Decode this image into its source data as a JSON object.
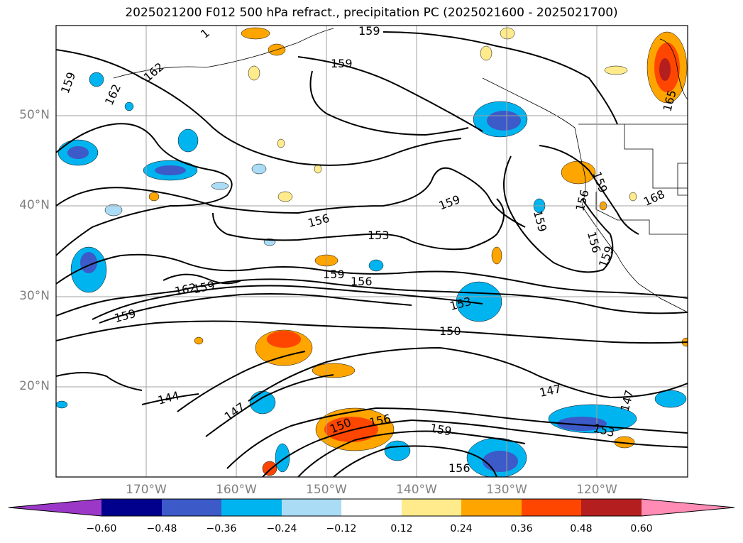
{
  "title": "2025021200 F012 500 hPa refract., precipitation PC (2025021600 - 2025021700)",
  "lat_labels": [
    "50°N",
    "40°N",
    "30°N",
    "20°N"
  ],
  "lon_labels": [
    "170°W",
    "160°W",
    "150°W",
    "140°W",
    "130°W",
    "120°W"
  ],
  "colorbar": {
    "ticks": [
      "−0.60",
      "−0.48",
      "−0.36",
      "−0.24",
      "−0.12",
      "0.12",
      "0.24",
      "0.36",
      "0.48",
      "0.60"
    ],
    "colors": [
      "#9b38c8",
      "#00008c",
      "#3c5ac8",
      "#00b4f0",
      "#aadcf5",
      "#ffffff",
      "#ffeb8c",
      "#ffa500",
      "#ff4600",
      "#b41e1e",
      "#ff8cb4"
    ]
  },
  "contour_labels": [
    "159",
    "162",
    "159",
    "162",
    "159",
    "159",
    "165",
    "159",
    "156",
    "156",
    "153",
    "159",
    "156",
    "159",
    "162",
    "159",
    "159",
    "153",
    "150",
    "144",
    "147",
    "150",
    "156",
    "159",
    "156",
    "147",
    "147",
    "153",
    "156",
    "159",
    "168"
  ],
  "colors": {
    "contour": "#000000",
    "grid": "#a0a0a0",
    "axis_label": "#808080"
  }
}
